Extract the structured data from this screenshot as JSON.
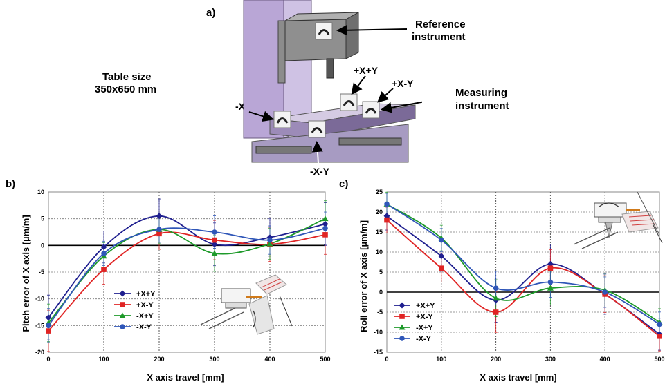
{
  "figure": {
    "panel_a_label": "a)",
    "panel_b_label": "b)",
    "panel_c_label": "c)",
    "table_size_line1": "Table size",
    "table_size_line2": "350x650 mm",
    "reference_line1": "Reference",
    "reference_line2": "instrument",
    "measuring_line1": "Measuring",
    "measuring_line2": "instrument",
    "pos_xpy": "+X+Y",
    "pos_xmy": "+X-Y",
    "pos_mxpy": "-X+Y",
    "pos_mxmy": "-X-Y"
  },
  "colors": {
    "series": [
      "#1f1f8f",
      "#e02424",
      "#1e9a2a",
      "#2f56b8"
    ],
    "machine_purple": "#b9a6d6",
    "machine_gray": "#9a9a9a"
  },
  "chart_data": [
    {
      "type": "line",
      "ylabel": "Pitch error of X axis [µm/m]",
      "xlabel": "X axis travel [mm]",
      "x": [
        0,
        100,
        200,
        300,
        400,
        500
      ],
      "xlim": [
        0,
        500
      ],
      "ylim": [
        -20,
        10
      ],
      "xticks": [
        "0",
        "100",
        "200",
        "300",
        "400",
        "500"
      ],
      "yticks": [
        "10",
        "5",
        "0",
        "-5",
        "-10",
        "-15",
        "-20"
      ],
      "grid": true,
      "legend_position": "lower-left",
      "series": [
        {
          "name": "+X+Y",
          "marker": "diamond",
          "values": [
            -13.5,
            -0.3,
            5.5,
            0.2,
            1.5,
            4.0
          ]
        },
        {
          "name": "+X-Y",
          "marker": "square",
          "values": [
            -16.0,
            -4.5,
            2.2,
            1.0,
            0.2,
            2.0
          ]
        },
        {
          "name": "-X+Y",
          "marker": "triangle",
          "values": [
            -14.5,
            -2.0,
            3.0,
            -1.5,
            0.3,
            5.0
          ]
        },
        {
          "name": "-X-Y",
          "marker": "circle",
          "values": [
            -15.0,
            -1.5,
            3.0,
            2.5,
            1.0,
            3.2
          ]
        }
      ]
    },
    {
      "type": "line",
      "ylabel": "Roll error of X axis [µm/m]",
      "xlabel": "X axis travel [mm]",
      "x": [
        0,
        100,
        200,
        300,
        400,
        500
      ],
      "xlim": [
        0,
        500
      ],
      "ylim": [
        -15,
        25
      ],
      "xticks": [
        "0",
        "100",
        "200",
        "300",
        "400",
        "500"
      ],
      "yticks": [
        "25",
        "20",
        "15",
        "10",
        "5",
        "0",
        "-5",
        "-10",
        "-15"
      ],
      "grid": true,
      "legend_position": "lower-left",
      "series": [
        {
          "name": "+X+Y",
          "marker": "diamond",
          "values": [
            19.0,
            9.0,
            -2.0,
            7.0,
            -0.5,
            -10.5
          ]
        },
        {
          "name": "+X-Y",
          "marker": "square",
          "values": [
            18.0,
            6.0,
            -5.0,
            6.0,
            -0.5,
            -11.0
          ]
        },
        {
          "name": "-X+Y",
          "marker": "triangle",
          "values": [
            22.0,
            13.5,
            -1.5,
            1.0,
            0.5,
            -7.5
          ]
        },
        {
          "name": "-X-Y",
          "marker": "circle",
          "values": [
            22.0,
            13.0,
            1.0,
            2.5,
            0.0,
            -8.0
          ]
        }
      ]
    }
  ]
}
